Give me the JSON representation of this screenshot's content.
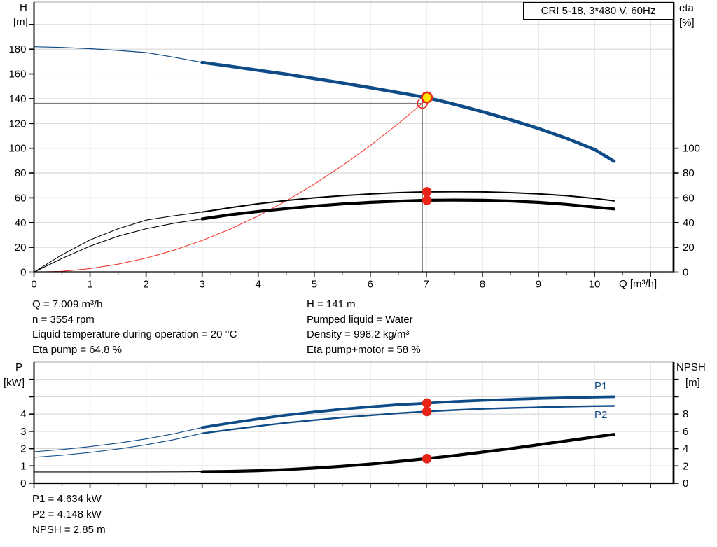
{
  "title_box": {
    "text": "CRI 5-18, 3*480 V, 60Hz"
  },
  "annotations": {
    "left": [
      "Q = 7.009 m³/h",
      "n = 3554 rpm",
      "Liquid temperature during operation = 20 °C",
      "Eta pump = 64.8 %"
    ],
    "right": [
      "H = 141 m",
      "Pumped liquid = Water",
      "Density = 998.2 kg/m³",
      "Eta pump+motor = 58 %"
    ],
    "bottom": [
      "P1 = 4.634 kW",
      "P2 = 4.148 kW",
      "NPSH = 2.85 m"
    ]
  },
  "chart_data": {
    "colors": {
      "accent_blue": "#0f4c87",
      "marker_red": "#e82317",
      "system_red": "#ef3b31",
      "marker_yellow": "#ffe400",
      "grid": "#d8d8d8",
      "crosshair": "#7d7d7d"
    },
    "top_chart": {
      "type": "line",
      "x_axis": {
        "label": "Q [m³/h]",
        "min": 0,
        "max": 11.4,
        "minor_step": 0.5,
        "tick_values": [
          0,
          1,
          2,
          3,
          4,
          5,
          6,
          7,
          8,
          9,
          10,
          11
        ],
        "tick_labels": [
          "0",
          "1",
          "2",
          "3",
          "4",
          "5",
          "6",
          "7",
          "8",
          "9",
          "10",
          ""
        ]
      },
      "left_axis": {
        "label": "H",
        "unit": "[m]",
        "min": 0,
        "scale_max": 218,
        "tick_values": [
          0,
          20,
          40,
          60,
          80,
          100,
          120,
          140,
          160,
          180,
          200
        ],
        "tick_labels": [
          "0",
          "20",
          "40",
          "60",
          "80",
          "100",
          "120",
          "140",
          "160",
          "180",
          ""
        ]
      },
      "right_axis": {
        "label": "eta",
        "unit": "[%]",
        "min": 0,
        "scale_max": 218,
        "tick_values": [
          0,
          20,
          40,
          60,
          80,
          100
        ],
        "tick_labels": [
          "0",
          "20",
          "40",
          "60",
          "80",
          "100"
        ]
      },
      "crosshair": {
        "q": 6.93,
        "value": 136.3
      },
      "series": [
        {
          "name": "system-curve",
          "color": "#ef3b31",
          "axis": "left",
          "width": 1.1,
          "x": [
            0,
            0.5,
            1,
            1.5,
            2,
            2.5,
            3,
            3.5,
            4,
            4.5,
            5,
            5.5,
            6,
            6.5,
            6.93,
            7.05
          ],
          "y": [
            0,
            0.7,
            2.8,
            6.4,
            11.3,
            17.7,
            25.5,
            34.8,
            45.4,
            57.5,
            71,
            85.9,
            102.2,
            119.9,
            136.3,
            141.2
          ]
        },
        {
          "name": "eta-pump-curve",
          "color": "#000000",
          "axis": "right",
          "thin_until": 3,
          "thin_width": 1.1,
          "width": 2,
          "x": [
            0,
            0.5,
            1,
            1.5,
            2,
            2.5,
            3,
            3.5,
            4,
            4.5,
            5,
            5.5,
            6,
            6.5,
            7,
            7.5,
            8,
            8.5,
            9,
            9.5,
            10,
            10.35
          ],
          "y": [
            0,
            14,
            26,
            35,
            42,
            45.5,
            48.5,
            52,
            55.2,
            57.8,
            60,
            61.7,
            63.1,
            64.2,
            64.8,
            65,
            64.8,
            64.2,
            63.2,
            61.7,
            59.5,
            57.5
          ]
        },
        {
          "name": "eta-pump-motor-curve",
          "color": "#000000",
          "axis": "right",
          "thin_until": 3,
          "thin_width": 1.1,
          "width": 4.2,
          "x": [
            0,
            0.5,
            1,
            1.5,
            2,
            2.5,
            3,
            3.5,
            4,
            4.5,
            5,
            5.5,
            6,
            6.5,
            7,
            7.5,
            8,
            8.5,
            9,
            9.5,
            10,
            10.35
          ],
          "y": [
            0,
            11,
            21,
            29,
            35,
            39.5,
            43,
            46.3,
            49,
            51.3,
            53.3,
            55,
            56.3,
            57.3,
            58,
            58.2,
            58,
            57.4,
            56.3,
            54.7,
            52.5,
            51
          ]
        },
        {
          "name": "pump-head-curve",
          "color": "#0f4c87",
          "axis": "left",
          "thin_until": 3,
          "thin_width": 1.2,
          "width": 4.6,
          "x": [
            0,
            0.5,
            1,
            1.5,
            2,
            2.5,
            3,
            3.5,
            4,
            4.5,
            5,
            5.5,
            6,
            6.5,
            7,
            7.5,
            8,
            8.5,
            9,
            9.5,
            10,
            10.35
          ],
          "y": [
            182,
            181.4,
            180.4,
            179,
            177.3,
            173.5,
            169.3,
            166.2,
            163,
            159.8,
            156.3,
            152.7,
            148.9,
            145,
            141,
            135.5,
            129.5,
            123,
            116,
            108,
            99,
            89.5
          ]
        }
      ],
      "markers": [
        {
          "name": "requested-duty-point",
          "type": "ring",
          "q": 6.93,
          "value": 136.3,
          "axis": "left"
        },
        {
          "name": "operating-point",
          "type": "op",
          "q": 7.01,
          "value": 141,
          "axis": "left"
        },
        {
          "name": "eta-pump-operating-point",
          "type": "dot",
          "q": 7.01,
          "value": 64.8,
          "axis": "right"
        },
        {
          "name": "eta-pump-motor-operating-point",
          "type": "dot",
          "q": 7.01,
          "value": 58,
          "axis": "right"
        }
      ]
    },
    "bottom_chart": {
      "type": "line",
      "x_axis": {
        "label": "",
        "min": 0,
        "max": 11.4,
        "minor_step": 0.5,
        "tick_values": [
          0,
          1,
          2,
          3,
          4,
          5,
          6,
          7,
          8,
          9,
          10,
          11
        ],
        "tick_labels": [
          "",
          "",
          "",
          "",
          "",
          "",
          "",
          "",
          "",
          "",
          "",
          ""
        ]
      },
      "left_axis": {
        "label": "P",
        "unit": "[kW]",
        "min": 0,
        "scale_max": 7,
        "tick_values": [
          0,
          1,
          2,
          3,
          4,
          5,
          6
        ],
        "tick_labels": [
          "0",
          "1",
          "2",
          "3",
          "4",
          "",
          ""
        ]
      },
      "right_axis": {
        "label": "NPSH",
        "unit": "[m]",
        "min": 0,
        "scale_max": 14,
        "tick_values": [
          0,
          2,
          4,
          6,
          8,
          10,
          12
        ],
        "tick_labels": [
          "0",
          "2",
          "4",
          "6",
          "8",
          "",
          ""
        ]
      },
      "series": [
        {
          "name": "npsh-curve",
          "color": "#000000",
          "axis": "right",
          "thin_until": 3,
          "thin_width": 1.1,
          "width": 4.2,
          "x": [
            0,
            0.5,
            1,
            1.5,
            2,
            2.5,
            3,
            3.5,
            4,
            4.5,
            5,
            5.5,
            6,
            6.5,
            7,
            7.5,
            8,
            8.5,
            9,
            9.5,
            10,
            10.35
          ],
          "y": [
            1.3,
            1.3,
            1.3,
            1.3,
            1.3,
            1.31,
            1.33,
            1.37,
            1.45,
            1.58,
            1.75,
            1.97,
            2.22,
            2.52,
            2.85,
            3.2,
            3.6,
            4.0,
            4.45,
            4.9,
            5.35,
            5.65
          ]
        },
        {
          "name": "p2-curve",
          "label": "P2",
          "color": "#0f4c87",
          "axis": "left",
          "thin_until": 3,
          "thin_width": 1.1,
          "width": 2.4,
          "x": [
            0,
            0.5,
            1,
            1.5,
            2,
            2.5,
            3,
            3.5,
            4,
            4.5,
            5,
            5.5,
            6,
            6.5,
            7,
            7.5,
            8,
            8.5,
            9,
            9.5,
            10,
            10.35
          ],
          "y": [
            1.5,
            1.62,
            1.78,
            1.98,
            2.22,
            2.52,
            2.88,
            3.1,
            3.3,
            3.49,
            3.65,
            3.8,
            3.93,
            4.05,
            4.15,
            4.23,
            4.3,
            4.35,
            4.39,
            4.43,
            4.46,
            4.47
          ]
        },
        {
          "name": "p1-curve",
          "label": "P1",
          "color": "#0f4c87",
          "axis": "left",
          "thin_until": 3,
          "thin_width": 1.1,
          "width": 3.8,
          "x": [
            0,
            0.5,
            1,
            1.5,
            2,
            2.5,
            3,
            3.5,
            4,
            4.5,
            5,
            5.5,
            6,
            6.5,
            7,
            7.5,
            8,
            8.5,
            9,
            9.5,
            10,
            10.35
          ],
          "y": [
            1.82,
            1.95,
            2.12,
            2.32,
            2.56,
            2.86,
            3.22,
            3.48,
            3.72,
            3.94,
            4.12,
            4.28,
            4.42,
            4.54,
            4.63,
            4.72,
            4.79,
            4.85,
            4.9,
            4.94,
            4.98,
            5.0
          ]
        }
      ],
      "markers": [
        {
          "name": "p1-operating-point",
          "type": "dot",
          "q": 7.01,
          "value": 4.634,
          "axis": "left"
        },
        {
          "name": "p2-operating-point",
          "type": "dot",
          "q": 7.01,
          "value": 4.148,
          "axis": "left"
        },
        {
          "name": "npsh-operating-point",
          "type": "dot",
          "q": 7.01,
          "value": 2.85,
          "axis": "right"
        }
      ],
      "curve_labels": {
        "p1": "P1",
        "p2": "P2"
      }
    }
  }
}
